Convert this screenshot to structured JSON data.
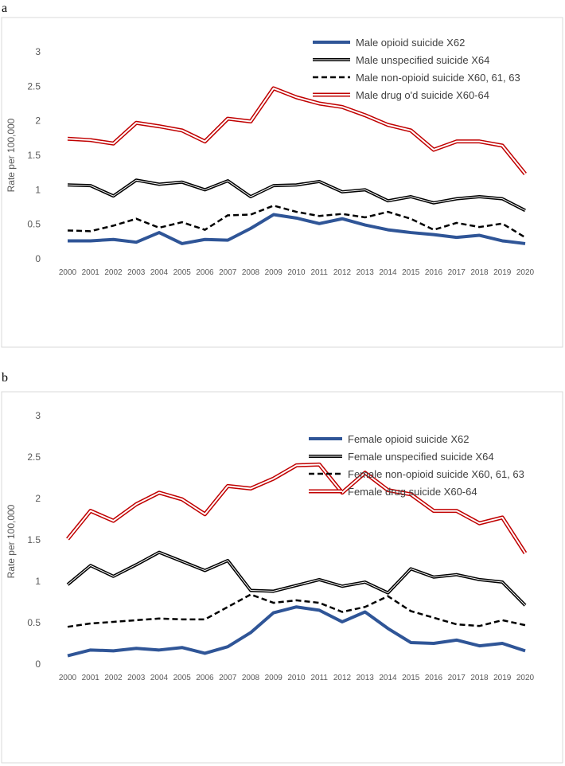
{
  "chart_data": [
    {
      "panel": "a",
      "type": "line",
      "ylabel": "Rate per 100,000",
      "ylim": [
        0,
        3
      ],
      "yticks": [
        "0",
        "0.5",
        "1",
        "1.5",
        "2",
        "2.5",
        "3"
      ],
      "x": [
        "2000",
        "2001",
        "2002",
        "2003",
        "2004",
        "2005",
        "2006",
        "2007",
        "2008",
        "2009",
        "2010",
        "2011",
        "2012",
        "2013",
        "2014",
        "2015",
        "2016",
        "2017",
        "2018",
        "2019",
        "2020"
      ],
      "legend_position": "top-right",
      "series": [
        {
          "name": "Male opioid suicide X62",
          "style": "solid-blue",
          "values": [
            0.26,
            0.26,
            0.28,
            0.24,
            0.38,
            0.22,
            0.28,
            0.27,
            0.44,
            0.64,
            0.59,
            0.51,
            0.58,
            0.49,
            0.42,
            0.38,
            0.35,
            0.31,
            0.34,
            0.26,
            0.22
          ]
        },
        {
          "name": "Male unspecified suicide X64",
          "style": "double-black",
          "values": [
            1.07,
            1.06,
            0.91,
            1.14,
            1.08,
            1.11,
            1.0,
            1.13,
            0.9,
            1.06,
            1.07,
            1.12,
            0.97,
            1.0,
            0.84,
            0.9,
            0.81,
            0.87,
            0.9,
            0.87,
            0.7
          ]
        },
        {
          "name": "Male non-opioid suicide X60, 61, 63",
          "style": "dashed-black",
          "values": [
            0.41,
            0.4,
            0.48,
            0.58,
            0.45,
            0.53,
            0.42,
            0.63,
            0.64,
            0.77,
            0.68,
            0.62,
            0.65,
            0.6,
            0.68,
            0.58,
            0.42,
            0.52,
            0.46,
            0.51,
            0.31
          ]
        },
        {
          "name": "Male drug o'd suicide X60-64",
          "style": "double-red",
          "values": [
            1.74,
            1.72,
            1.67,
            1.97,
            1.92,
            1.86,
            1.7,
            2.03,
            1.99,
            2.47,
            2.34,
            2.25,
            2.2,
            2.08,
            1.94,
            1.86,
            1.58,
            1.7,
            1.7,
            1.64,
            1.23
          ]
        }
      ]
    },
    {
      "panel": "b",
      "type": "line",
      "ylabel": "Rate per 100,000",
      "ylim": [
        0,
        3
      ],
      "yticks": [
        "0",
        "0.5",
        "1",
        "1.5",
        "2",
        "2.5",
        "3"
      ],
      "x": [
        "2000",
        "2001",
        "2002",
        "2003",
        "2004",
        "2005",
        "2006",
        "2007",
        "2008",
        "2009",
        "2010",
        "2011",
        "2012",
        "2013",
        "2014",
        "2015",
        "2016",
        "2017",
        "2018",
        "2019",
        "2020"
      ],
      "legend_position": "top-right",
      "series": [
        {
          "name": "Female opioid suicide X62",
          "style": "solid-blue",
          "values": [
            0.1,
            0.17,
            0.16,
            0.19,
            0.17,
            0.2,
            0.13,
            0.21,
            0.38,
            0.62,
            0.69,
            0.65,
            0.51,
            0.63,
            0.43,
            0.26,
            0.25,
            0.29,
            0.22,
            0.25,
            0.16
          ]
        },
        {
          "name": "Female unspecified suicide X64",
          "style": "double-black",
          "values": [
            0.96,
            1.19,
            1.06,
            1.2,
            1.35,
            1.24,
            1.13,
            1.25,
            0.89,
            0.88,
            0.95,
            1.02,
            0.94,
            0.99,
            0.86,
            1.15,
            1.05,
            1.08,
            1.02,
            0.99,
            0.71
          ]
        },
        {
          "name": "Female non-opioid suicide X60, 61, 63",
          "style": "dashed-black",
          "values": [
            0.45,
            0.49,
            0.51,
            0.53,
            0.55,
            0.54,
            0.54,
            0.69,
            0.84,
            0.74,
            0.77,
            0.74,
            0.63,
            0.69,
            0.82,
            0.64,
            0.56,
            0.48,
            0.46,
            0.53,
            0.47
          ]
        },
        {
          "name": "Female drug suicide X60-64",
          "style": "double-red",
          "values": [
            1.51,
            1.85,
            1.73,
            1.93,
            2.07,
            1.99,
            1.81,
            2.15,
            2.12,
            2.24,
            2.4,
            2.41,
            2.07,
            2.31,
            2.1,
            2.05,
            1.85,
            1.85,
            1.7,
            1.77,
            1.34
          ]
        }
      ]
    }
  ],
  "colors": {
    "blue": "#2f5597",
    "red": "#c00000",
    "black": "#000000",
    "frame": "#d9d9d9"
  }
}
